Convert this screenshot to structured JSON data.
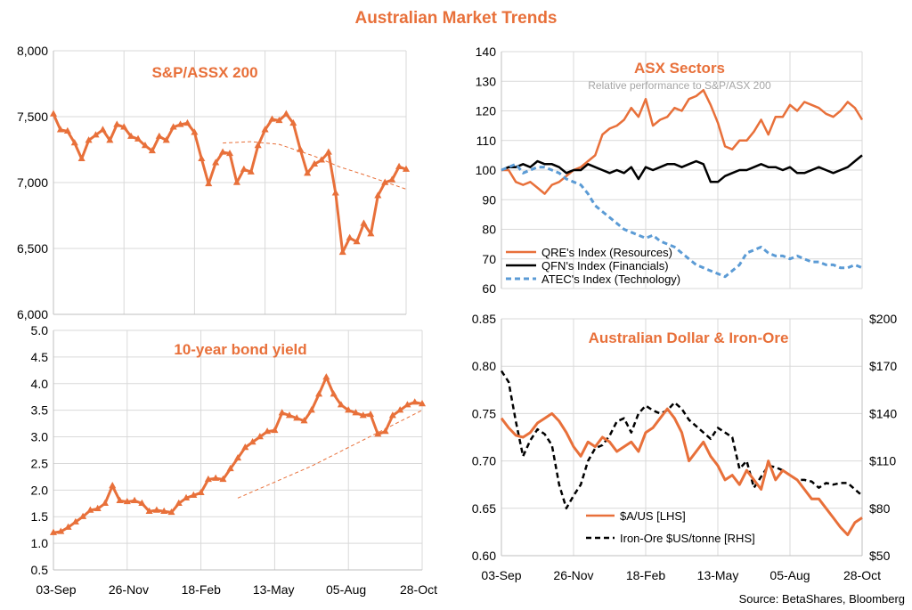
{
  "title": "Australian Market Trends",
  "source": "Source: BetaShares, Bloomberg",
  "colors": {
    "orange": "#E8703A",
    "black": "#000000",
    "blue": "#5B9BD5",
    "grid": "#D9D9D9",
    "axis": "#BFBFBF"
  },
  "x_axis_labels": [
    "03-Sep",
    "26-Nov",
    "18-Feb",
    "13-May",
    "05-Aug",
    "28-Oct"
  ],
  "chart_data": [
    {
      "id": "asx200",
      "type": "line",
      "title": "S&P/ASSX 200",
      "x": [
        0,
        2,
        4,
        6,
        8,
        10,
        12,
        14,
        16,
        18,
        20,
        22,
        24,
        26,
        28,
        30,
        32,
        34,
        36,
        38,
        40,
        42,
        44,
        46,
        48,
        50,
        52,
        54,
        56,
        58,
        60,
        62,
        64,
        66,
        68,
        70,
        72,
        74,
        76,
        78,
        80,
        82,
        84,
        86,
        88,
        90,
        92,
        94,
        96,
        98,
        100
      ],
      "y_ticks": [
        "6,000",
        "6,500",
        "7,000",
        "7,500",
        "8,000"
      ],
      "ylim": [
        6000,
        8000
      ],
      "series": [
        {
          "values": [
            7520,
            7400,
            7390,
            7300,
            7180,
            7320,
            7360,
            7400,
            7320,
            7440,
            7420,
            7350,
            7330,
            7280,
            7240,
            7350,
            7320,
            7420,
            7440,
            7450,
            7380,
            7180,
            6990,
            7150,
            7230,
            7220,
            7000,
            7100,
            7080,
            7280,
            7400,
            7480,
            7470,
            7520,
            7450,
            7250,
            7070,
            7140,
            7170,
            7230,
            6920,
            6470,
            6580,
            6550,
            6690,
            6610,
            6900,
            7000,
            7020,
            7120,
            7100
          ]
        }
      ],
      "trend": {
        "x": [
          48,
          56,
          64,
          74,
          81,
          88,
          100
        ],
        "values": [
          7300,
          7310,
          7290,
          7200,
          7120,
          7060,
          6950
        ]
      }
    },
    {
      "id": "bond",
      "type": "line",
      "title": "10-year bond yield",
      "x_labels": [
        "03-Sep",
        "26-Nov",
        "18-Feb",
        "13-May",
        "05-Aug",
        "28-Oct"
      ],
      "y_ticks": [
        "0.5",
        "1.0",
        "1.5",
        "2.0",
        "2.5",
        "3.0",
        "3.5",
        "4.0",
        "4.5",
        "5.0"
      ],
      "ylim": [
        0.5,
        5.0
      ],
      "x": [
        0,
        2,
        4,
        6,
        8,
        10,
        12,
        14,
        16,
        18,
        20,
        22,
        24,
        26,
        28,
        30,
        32,
        34,
        36,
        38,
        40,
        42,
        44,
        46,
        48,
        50,
        52,
        54,
        56,
        58,
        60,
        62,
        64,
        66,
        68,
        70,
        72,
        74,
        76,
        78,
        80,
        82,
        84,
        86,
        88,
        90,
        92,
        94,
        96,
        98,
        100
      ],
      "series": [
        {
          "values": [
            1.2,
            1.22,
            1.3,
            1.4,
            1.5,
            1.62,
            1.65,
            1.75,
            2.08,
            1.8,
            1.78,
            1.8,
            1.75,
            1.6,
            1.62,
            1.6,
            1.58,
            1.75,
            1.85,
            1.9,
            1.95,
            2.2,
            2.22,
            2.2,
            2.4,
            2.6,
            2.8,
            2.9,
            3.0,
            3.1,
            3.12,
            3.45,
            3.4,
            3.35,
            3.3,
            3.5,
            3.8,
            4.12,
            3.8,
            3.6,
            3.5,
            3.45,
            3.4,
            3.42,
            3.05,
            3.1,
            3.4,
            3.5,
            3.6,
            3.65,
            3.62
          ]
        }
      ],
      "trend": {
        "x": [
          50,
          60,
          70,
          80,
          90,
          100
        ],
        "values": [
          1.85,
          2.15,
          2.45,
          2.8,
          3.15,
          3.5
        ]
      }
    },
    {
      "id": "sectors",
      "type": "line",
      "title": "ASX Sectors",
      "subtitle": "Relative performance to S&P/ASX 200",
      "y_ticks": [
        "60",
        "70",
        "80",
        "90",
        "100",
        "110",
        "120",
        "130",
        "140"
      ],
      "ylim": [
        60,
        140
      ],
      "x": [
        0,
        2,
        4,
        6,
        8,
        10,
        12,
        14,
        16,
        18,
        20,
        22,
        24,
        26,
        28,
        30,
        32,
        34,
        36,
        38,
        40,
        42,
        44,
        46,
        48,
        50,
        52,
        54,
        56,
        58,
        60,
        62,
        64,
        66,
        68,
        70,
        72,
        74,
        76,
        78,
        80,
        82,
        84,
        86,
        88,
        90,
        92,
        94,
        96,
        98,
        100
      ],
      "series": [
        {
          "name": "QRE's Index (Resources)",
          "style": "solid-orange",
          "values": [
            100,
            100,
            96,
            95,
            96,
            94,
            92,
            95,
            96,
            98,
            100,
            101,
            103,
            105,
            112,
            114,
            115,
            117,
            121,
            118,
            124,
            115,
            117,
            118,
            121,
            120,
            124,
            125,
            127,
            122,
            116,
            108,
            107,
            110,
            110,
            113,
            117,
            112,
            118,
            118,
            122,
            120,
            123,
            122,
            121,
            119,
            118,
            120,
            123,
            121,
            117
          ]
        },
        {
          "name": "QFN's Index (Financials)",
          "style": "solid-black",
          "values": [
            100,
            101,
            101,
            102,
            101,
            103,
            102,
            102,
            101,
            99,
            100,
            100,
            102,
            101,
            100,
            99,
            100,
            99,
            101,
            97,
            101,
            100,
            101,
            102,
            102,
            101,
            102,
            103,
            102,
            96,
            96,
            98,
            99,
            100,
            100,
            101,
            102,
            101,
            101,
            100,
            101,
            99,
            99,
            100,
            101,
            100,
            99,
            100,
            101,
            103,
            105
          ]
        },
        {
          "name": "ATEC's Index (Technology)",
          "style": "dash-blue",
          "values": [
            100,
            101,
            102,
            99,
            100,
            101,
            101,
            100,
            99,
            97,
            96,
            95,
            92,
            88,
            86,
            84,
            82,
            80,
            79,
            78,
            77,
            78,
            76,
            75,
            74,
            72,
            70,
            68,
            67,
            66,
            65,
            64,
            66,
            68,
            72,
            73,
            74,
            72,
            71,
            71,
            70,
            71,
            70,
            69,
            69,
            68,
            68,
            67,
            67,
            68,
            67
          ]
        }
      ]
    },
    {
      "id": "aud_iron",
      "type": "line",
      "title": "Australian Dollar & Iron-Ore",
      "y_ticks_left": [
        "0.60",
        "0.65",
        "0.70",
        "0.75",
        "0.80",
        "0.85"
      ],
      "ylim_left": [
        0.6,
        0.85
      ],
      "y_ticks_right": [
        "$50",
        "$80",
        "$110",
        "$140",
        "$170",
        "$200"
      ],
      "ylim_right": [
        50,
        200
      ],
      "x_labels": [
        "03-Sep",
        "26-Nov",
        "18-Feb",
        "13-May",
        "05-Aug",
        "28-Oct"
      ],
      "x": [
        0,
        2,
        4,
        6,
        8,
        10,
        12,
        14,
        16,
        18,
        20,
        22,
        24,
        26,
        28,
        30,
        32,
        34,
        36,
        38,
        40,
        42,
        44,
        46,
        48,
        50,
        52,
        54,
        56,
        58,
        60,
        62,
        64,
        66,
        68,
        70,
        72,
        74,
        76,
        78,
        80,
        82,
        84,
        86,
        88,
        90,
        92,
        94,
        96,
        98,
        100
      ],
      "series": [
        {
          "name": "$A/US [LHS]",
          "style": "solid-orange",
          "values": [
            0.745,
            0.735,
            0.727,
            0.725,
            0.73,
            0.74,
            0.745,
            0.75,
            0.742,
            0.73,
            0.715,
            0.705,
            0.72,
            0.715,
            0.725,
            0.72,
            0.71,
            0.715,
            0.72,
            0.71,
            0.73,
            0.735,
            0.745,
            0.755,
            0.745,
            0.73,
            0.7,
            0.71,
            0.72,
            0.705,
            0.695,
            0.68,
            0.685,
            0.675,
            0.69,
            0.68,
            0.67,
            0.7,
            0.68,
            0.69,
            0.685,
            0.68,
            0.67,
            0.66,
            0.66,
            0.65,
            0.64,
            0.63,
            0.622,
            0.635,
            0.64
          ]
        },
        {
          "name": "Iron-Ore $US/tonne [RHS]",
          "style": "dash-black",
          "values": [
            167,
            160,
            135,
            113,
            123,
            130,
            127,
            120,
            95,
            80,
            88,
            95,
            110,
            118,
            120,
            126,
            135,
            137,
            128,
            140,
            145,
            142,
            140,
            142,
            147,
            143,
            136,
            132,
            128,
            124,
            131,
            128,
            125,
            105,
            110,
            93,
            100,
            107,
            106,
            104,
            101,
            98,
            98,
            97,
            93,
            96,
            95,
            96,
            96,
            92,
            88
          ]
        }
      ]
    }
  ]
}
